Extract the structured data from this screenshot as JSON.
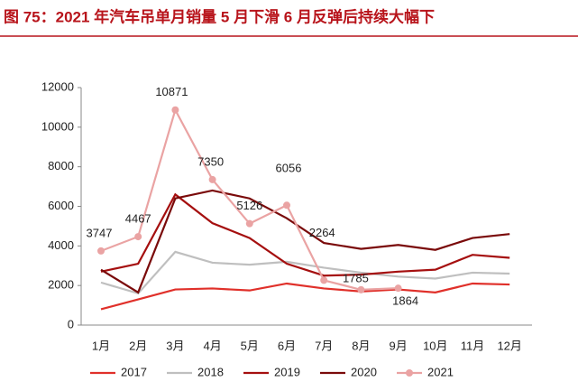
{
  "chart_data": {
    "type": "line",
    "title": "图 75：2021 年汽车吊单月销量 5 月下滑 6 月反弹后持续大幅下",
    "categories": [
      "1月",
      "2月",
      "3月",
      "4月",
      "5月",
      "6月",
      "7月",
      "8月",
      "9月",
      "10月",
      "11月",
      "12月"
    ],
    "series": [
      {
        "name": "2017",
        "color": "#e0302a",
        "values": [
          800,
          1300,
          1800,
          1850,
          1750,
          2100,
          1850,
          1700,
          1800,
          1650,
          2100,
          2050
        ]
      },
      {
        "name": "2018",
        "color": "#bfbfbf",
        "values": [
          2150,
          1600,
          3700,
          3150,
          3050,
          3200,
          2900,
          2650,
          2450,
          2350,
          2650,
          2600
        ]
      },
      {
        "name": "2019",
        "color": "#a50f0f",
        "values": [
          2700,
          3100,
          6600,
          5150,
          4400,
          3100,
          2500,
          2550,
          2700,
          2800,
          3550,
          3400
        ]
      },
      {
        "name": "2020",
        "color": "#7a0a0a",
        "values": [
          2800,
          1650,
          6400,
          6800,
          6400,
          5400,
          4150,
          3850,
          4050,
          3800,
          4400,
          4600
        ]
      },
      {
        "name": "2021",
        "color": "#eaa3a3",
        "markers": true,
        "data_labels": true,
        "values": [
          3747,
          4467,
          10871,
          7350,
          5126,
          6056,
          2264,
          1785,
          1864,
          null,
          null,
          null
        ]
      }
    ],
    "ylim": [
      0,
      12000
    ],
    "yticks": [
      0,
      2000,
      4000,
      6000,
      8000,
      10000,
      12000
    ]
  }
}
